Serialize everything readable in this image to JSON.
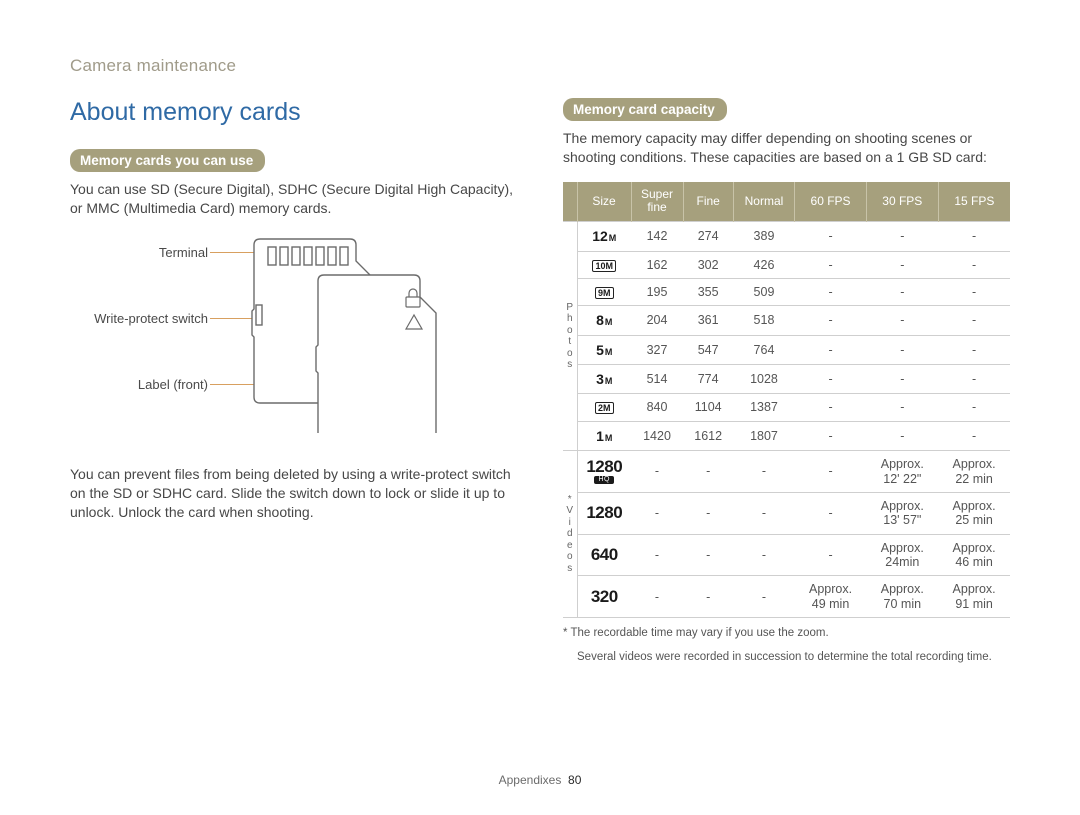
{
  "page_header": "Camera maintenance",
  "section_title": "About memory cards",
  "left": {
    "pill": "Memory cards you can use",
    "intro": "You can use SD (Secure Digital), SDHC (Secure Digital High Capacity), or MMC (Multimedia Card) memory cards.",
    "diagram": {
      "labels": {
        "terminal": "Terminal",
        "write_protect": "Write-protect switch",
        "label_front": "Label (front)"
      },
      "colors": {
        "lead": "#d8a060",
        "card_outline": "#6b6b6b",
        "card_fill": "#ffffff"
      }
    },
    "note": "You can prevent files from being deleted by using a write-protect switch on the SD or SDHC card. Slide the switch down to lock or slide it up to unlock. Unlock the card when shooting."
  },
  "right": {
    "pill": "Memory card capacity",
    "intro": "The memory capacity may differ depending on shooting scenes or shooting conditions. These capacities are based on a 1 GB SD card:",
    "table": {
      "header_bg": "#a6a07d",
      "header_fg": "#ffffff",
      "border": "#cfcfcf",
      "columns": [
        "Size",
        "Super fine",
        "Fine",
        "Normal",
        "60 FPS",
        "30 FPS",
        "15 FPS"
      ],
      "groups": [
        {
          "label": "Photos",
          "vertical": "P h o t o s"
        },
        {
          "label": "Videos",
          "vertical": "* V i d e o s"
        }
      ],
      "photo_rows": [
        {
          "size_style": "mp",
          "big": "12",
          "small": "M",
          "vals": [
            "142",
            "274",
            "389",
            "-",
            "-",
            "-"
          ]
        },
        {
          "size_style": "outlined",
          "label": "10M",
          "vals": [
            "162",
            "302",
            "426",
            "-",
            "-",
            "-"
          ]
        },
        {
          "size_style": "outlined",
          "label": "9M",
          "vals": [
            "195",
            "355",
            "509",
            "-",
            "-",
            "-"
          ]
        },
        {
          "size_style": "mp",
          "big": "8",
          "small": "M",
          "vals": [
            "204",
            "361",
            "518",
            "-",
            "-",
            "-"
          ]
        },
        {
          "size_style": "mp",
          "big": "5",
          "small": "M",
          "vals": [
            "327",
            "547",
            "764",
            "-",
            "-",
            "-"
          ]
        },
        {
          "size_style": "mp",
          "big": "3",
          "small": "M",
          "vals": [
            "514",
            "774",
            "1028",
            "-",
            "-",
            "-"
          ]
        },
        {
          "size_style": "outlined",
          "label": "2M",
          "vals": [
            "840",
            "1104",
            "1387",
            "-",
            "-",
            "-"
          ]
        },
        {
          "size_style": "mp",
          "big": "1",
          "small": "M",
          "vals": [
            "1420",
            "1612",
            "1807",
            "-",
            "-",
            "-"
          ]
        }
      ],
      "video_rows": [
        {
          "res": "1280",
          "hq": true,
          "vals": [
            "-",
            "-",
            "-",
            "-",
            "Approx. 12' 22\"",
            "Approx. 22 min"
          ]
        },
        {
          "res": "1280",
          "hq": false,
          "vals": [
            "-",
            "-",
            "-",
            "-",
            "Approx. 13' 57\"",
            "Approx. 25 min"
          ]
        },
        {
          "res": "640",
          "hq": false,
          "vals": [
            "-",
            "-",
            "-",
            "-",
            "Approx. 24min",
            "Approx. 46 min"
          ]
        },
        {
          "res": "320",
          "hq": false,
          "vals": [
            "-",
            "-",
            "-",
            "Approx. 49 min",
            "Approx. 70 min",
            "Approx. 91 min"
          ]
        }
      ]
    },
    "footnotes": [
      "* The recordable time may vary if you use the zoom.",
      "Several videos were recorded in succession to determine the total recording time."
    ]
  },
  "footer": {
    "section": "Appendixes",
    "page": "80"
  }
}
